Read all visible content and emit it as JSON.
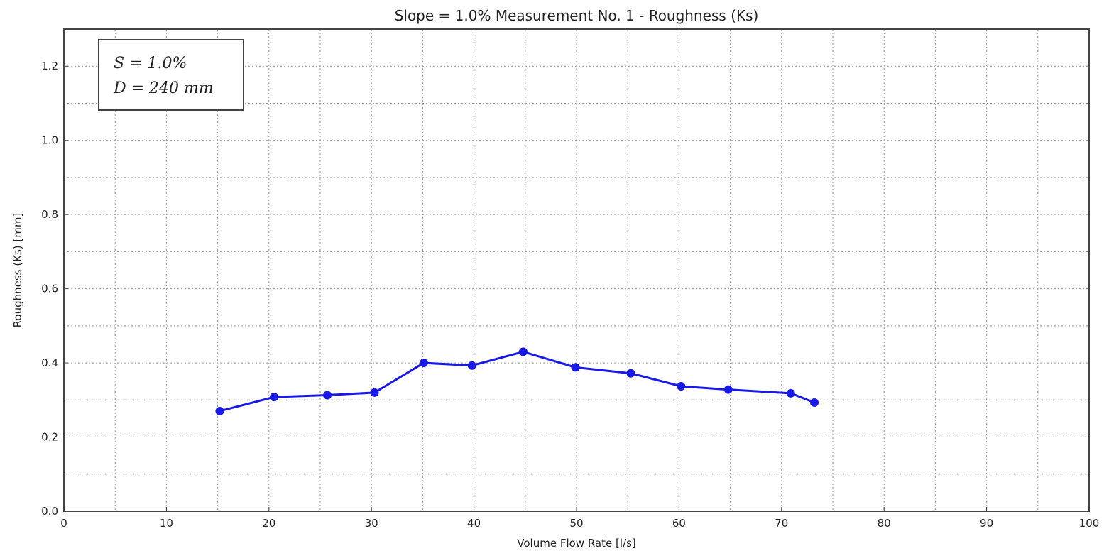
{
  "chart_data": {
    "type": "line",
    "title": "Slope = 1.0% Measurement No. 1 - Roughness (Ks)",
    "xlabel": "Volume Flow Rate [l/s]",
    "ylabel": "Roughness (Ks) [mm]",
    "xlim": [
      0,
      100
    ],
    "ylim": [
      0,
      1.3
    ],
    "xticks": [
      0,
      10,
      20,
      30,
      40,
      50,
      60,
      70,
      80,
      90,
      100
    ],
    "xtick_labels": [
      "0",
      "10",
      "20",
      "30",
      "40",
      "50",
      "60",
      "70",
      "80",
      "90",
      "100"
    ],
    "yticks": [
      0.0,
      0.2,
      0.4,
      0.6,
      0.8,
      1.0,
      1.2
    ],
    "ytick_labels": [
      "0.0",
      "0.2",
      "0.4",
      "0.6",
      "0.8",
      "1.0",
      "1.2"
    ],
    "xminor": [
      5,
      15,
      25,
      35,
      45,
      55,
      65,
      75,
      85,
      95
    ],
    "yminor": [
      0.1,
      0.3,
      0.5,
      0.7,
      0.9,
      1.1
    ],
    "grid": true,
    "annotation": {
      "placement": "top-left",
      "lines": [
        "S = 1.0%",
        "D = 240 mm"
      ]
    },
    "series": [
      {
        "color": "#1a1ae6",
        "marker": "circle",
        "x": [
          15.2,
          20.5,
          25.7,
          30.3,
          35.1,
          39.8,
          44.8,
          49.9,
          55.3,
          60.2,
          64.8,
          70.9,
          73.2
        ],
        "y": [
          0.27,
          0.308,
          0.313,
          0.32,
          0.4,
          0.393,
          0.43,
          0.388,
          0.372,
          0.337,
          0.328,
          0.318,
          0.293
        ]
      }
    ]
  }
}
